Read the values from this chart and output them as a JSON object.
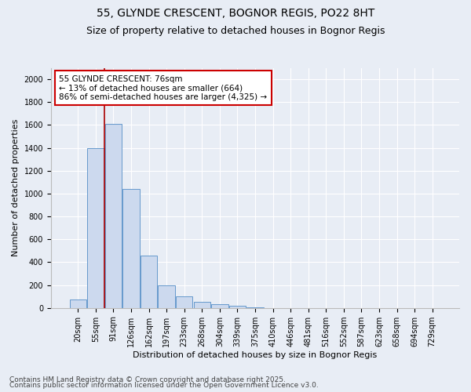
{
  "title_line1": "55, GLYNDE CRESCENT, BOGNOR REGIS, PO22 8HT",
  "title_line2": "Size of property relative to detached houses in Bognor Regis",
  "xlabel": "Distribution of detached houses by size in Bognor Regis",
  "ylabel": "Number of detached properties",
  "categories": [
    "20sqm",
    "55sqm",
    "91sqm",
    "126sqm",
    "162sqm",
    "197sqm",
    "233sqm",
    "268sqm",
    "304sqm",
    "339sqm",
    "375sqm",
    "410sqm",
    "446sqm",
    "481sqm",
    "516sqm",
    "552sqm",
    "587sqm",
    "623sqm",
    "658sqm",
    "694sqm",
    "729sqm"
  ],
  "values": [
    75,
    1400,
    1610,
    1040,
    460,
    200,
    100,
    55,
    30,
    20,
    5,
    0,
    0,
    0,
    0,
    0,
    0,
    0,
    0,
    0,
    0
  ],
  "bar_color": "#ccd9ee",
  "bar_edge_color": "#6699cc",
  "annotation_text": "55 GLYNDE CRESCENT: 76sqm\n← 13% of detached houses are smaller (664)\n86% of semi-detached houses are larger (4,325) →",
  "annotation_box_color": "#ffffff",
  "annotation_box_edge_color": "#cc0000",
  "red_line_color": "#aa0000",
  "yticks": [
    0,
    200,
    400,
    600,
    800,
    1000,
    1200,
    1400,
    1600,
    1800,
    2000
  ],
  "ylim": [
    0,
    2100
  ],
  "footer_line1": "Contains HM Land Registry data © Crown copyright and database right 2025.",
  "footer_line2": "Contains public sector information licensed under the Open Government Licence v3.0.",
  "background_color": "#e8edf5",
  "plot_background": "#e8edf5",
  "grid_color": "#ffffff",
  "title_fontsize": 10,
  "subtitle_fontsize": 9,
  "axis_label_fontsize": 8,
  "tick_fontsize": 7,
  "footer_fontsize": 6.5,
  "annotation_fontsize": 7.5
}
